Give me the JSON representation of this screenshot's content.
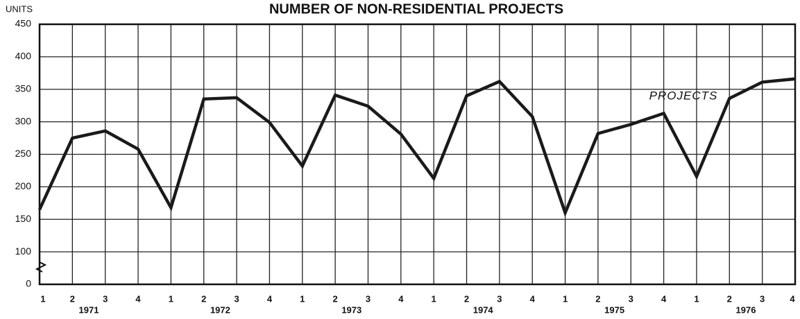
{
  "chart_data": {
    "type": "line",
    "title": "NUMBER OF NON-RESIDENTIAL PROJECTS",
    "y_axis_label": "UNITS",
    "annotation": "PROJECTS",
    "categories": [
      "1",
      "2",
      "3",
      "4",
      "1",
      "2",
      "3",
      "4",
      "1",
      "2",
      "3",
      "4",
      "1",
      "2",
      "3",
      "4",
      "1",
      "2",
      "3",
      "4",
      "1",
      "2",
      "3",
      "4"
    ],
    "years": [
      "1971",
      "1972",
      "1973",
      "1974",
      "1975",
      "1976"
    ],
    "series": [
      {
        "name": "PROJECTS",
        "color": "#1a1a1a",
        "values": [
          165,
          275,
          286,
          258,
          168,
          335,
          337,
          299,
          232,
          341,
          324,
          281,
          213,
          340,
          362,
          308,
          160,
          282,
          296,
          313,
          216,
          336,
          361,
          366
        ]
      }
    ],
    "ylim": [
      0,
      450
    ],
    "yticks": [
      0,
      100,
      150,
      200,
      250,
      300,
      350,
      400,
      450
    ],
    "axis_break": [
      0,
      100
    ],
    "grid": true
  }
}
